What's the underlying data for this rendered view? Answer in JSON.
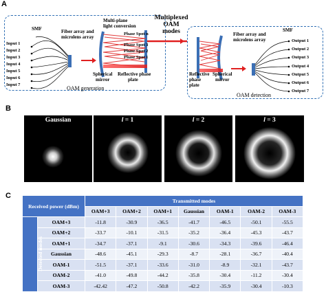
{
  "panel_a": {
    "letter": "A",
    "left": {
      "smf": "SMF",
      "inputs": [
        "Input 1",
        "Input 2",
        "Input 3",
        "Input 4",
        "Input 5",
        "Input 6",
        "Input 7"
      ],
      "fiber_array": "Fiber array and",
      "microlens": "microlens array",
      "multiplane_1": "Multi-plane",
      "multiplane_2": "light conversion",
      "phase_spots": [
        "Phase Spot n",
        "...",
        "Phase Spot 3",
        "Phase Spot 2",
        "Phase Spot 1"
      ],
      "spherical_1": "Spherical",
      "spherical_2": "mirror",
      "reflective_1": "Reflective phase",
      "reflective_2": "plate",
      "caption": "OAM generation"
    },
    "middle": {
      "line1": "Multiplexed",
      "line2": "OAM",
      "line3": "modes"
    },
    "right": {
      "smf": "SMF",
      "outputs": [
        "Output 1",
        "Output 2",
        "Output 3",
        "Output 4",
        "Output 5",
        "Output 6",
        "Output 7"
      ],
      "fiber_array": "Fiber array and",
      "microlens": "microlens array",
      "reflective_1": "Reflective",
      "reflective_2": "phase",
      "reflective_3": "plate",
      "spherical_1": "Spherical",
      "spherical_2": "mirror",
      "caption": "OAM detection"
    }
  },
  "panel_b": {
    "letter": "B",
    "beams": [
      {
        "label": "Gaussian",
        "l_value": ""
      },
      {
        "label": "l",
        "l_value": " = 1"
      },
      {
        "label": "l",
        "l_value": " = 2"
      },
      {
        "label": "l",
        "l_value": " = 3"
      }
    ]
  },
  "panel_c": {
    "letter": "C",
    "corner_label": "Received power (dBm)",
    "transmitted_label": "Transmitted modes",
    "detected_label": "Detected modes",
    "columns": [
      "OAM+3",
      "OAM+2",
      "OAM+1",
      "Gaussian",
      "OAM-1",
      "OAM-2",
      "OAM-3"
    ],
    "rows": [
      {
        "label": "OAM+3",
        "values": [
          "-11.8",
          "-30.9",
          "-36.5",
          "-41.7",
          "-46.5",
          "-50.1",
          "-55.5"
        ]
      },
      {
        "label": "OAM+2",
        "values": [
          "-33.7",
          "-10.1",
          "-31.5",
          "-35.2",
          "-36.4",
          "-45.3",
          "-43.7"
        ]
      },
      {
        "label": "OAM+1",
        "values": [
          "-34.7",
          "-37.1",
          "-9.1",
          "-30.6",
          "-34.3",
          "-39.6",
          "-46.4"
        ]
      },
      {
        "label": "Gaussian",
        "values": [
          "-48.6",
          "-45.1",
          "-29.3",
          "-8.7",
          "-28.1",
          "-36.7",
          "-40.4"
        ]
      },
      {
        "label": "OAM-1",
        "values": [
          "-51.5",
          "-37.1",
          "-33.6",
          "-31.0",
          "-8.9",
          "-32.1",
          "-43.7"
        ]
      },
      {
        "label": "OAM-2",
        "values": [
          "-41.0",
          "-49.8",
          "-44.2",
          "-35.8",
          "-30.4",
          "-11.2",
          "-30.4"
        ]
      },
      {
        "label": "OAM-3",
        "values": [
          "-42.42",
          "-47.2",
          "-50.8",
          "-42.2",
          "-35.9",
          "-30.4",
          "-10.3"
        ]
      }
    ]
  }
}
